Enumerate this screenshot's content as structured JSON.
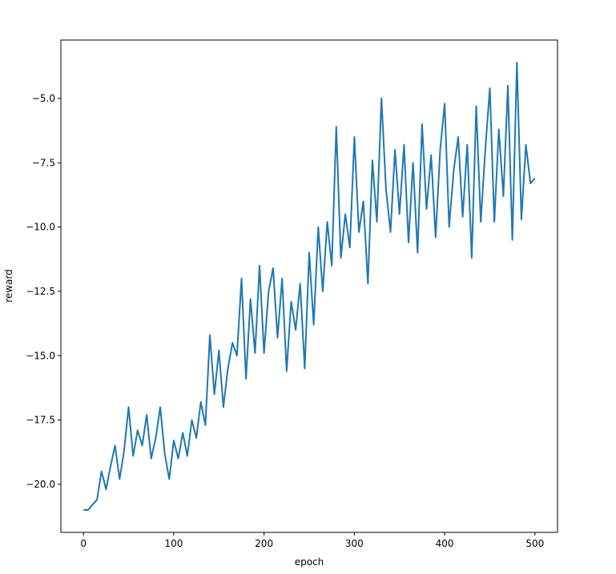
{
  "chart_data": {
    "type": "line",
    "title": "",
    "xlabel": "epoch",
    "ylabel": "reward",
    "xlim": [
      -25,
      525
    ],
    "ylim": [
      -21.87,
      -2.73
    ],
    "xticks": [
      0,
      100,
      200,
      300,
      400,
      500
    ],
    "xtick_labels": [
      "0",
      "100",
      "200",
      "300",
      "400",
      "500"
    ],
    "yticks": [
      -20.0,
      -17.5,
      -15.0,
      -12.5,
      -10.0,
      -7.5,
      -5.0
    ],
    "ytick_labels": [
      "−20.0",
      "−17.5",
      "−15.0",
      "−12.5",
      "−10.0",
      "−7.5",
      "−5.0"
    ],
    "grid": false,
    "color": "#1f77b4",
    "series": [
      {
        "x": [
          0,
          5,
          10,
          15,
          20,
          25,
          30,
          35,
          40,
          45,
          50,
          55,
          60,
          65,
          70,
          75,
          80,
          85,
          90,
          95,
          100,
          105,
          110,
          115,
          120,
          125,
          130,
          135,
          140,
          145,
          150,
          155,
          160,
          165,
          170,
          175,
          180,
          185,
          190,
          195,
          200,
          205,
          210,
          215,
          220,
          225,
          230,
          235,
          240,
          245,
          250,
          255,
          260,
          265,
          270,
          275,
          280,
          285,
          290,
          295,
          300,
          305,
          310,
          315,
          320,
          325,
          330,
          335,
          340,
          345,
          350,
          355,
          360,
          365,
          370,
          375,
          380,
          385,
          390,
          395,
          400,
          405,
          410,
          415,
          420,
          425,
          430,
          435,
          440,
          445,
          450,
          455,
          460,
          465,
          470,
          475,
          480,
          485,
          490,
          495,
          500
        ],
        "y": [
          -21,
          -21,
          -20.8,
          -20.6,
          -19.5,
          -20.2,
          -19.3,
          -18.5,
          -19.8,
          -18.7,
          -17.0,
          -18.9,
          -17.9,
          -18.5,
          -17.3,
          -19.0,
          -18.2,
          -17.0,
          -18.8,
          -19.8,
          -18.3,
          -19.0,
          -18.0,
          -18.9,
          -17.5,
          -18.2,
          -16.8,
          -17.7,
          -14.2,
          -16.5,
          -14.8,
          -17.0,
          -15.5,
          -14.5,
          -15.0,
          -12.0,
          -15.9,
          -12.8,
          -14.9,
          -11.5,
          -14.9,
          -12.5,
          -11.6,
          -14.3,
          -12.0,
          -15.6,
          -12.9,
          -14.0,
          -12.2,
          -15.5,
          -11.0,
          -13.8,
          -10.0,
          -12.5,
          -9.8,
          -11.5,
          -6.1,
          -11.2,
          -9.5,
          -10.8,
          -6.5,
          -10.2,
          -9.0,
          -12.2,
          -7.4,
          -9.8,
          -5.0,
          -8.5,
          -10.2,
          -7.0,
          -9.5,
          -6.8,
          -10.6,
          -7.5,
          -11.0,
          -6.0,
          -9.3,
          -7.2,
          -10.4,
          -7.0,
          -5.2,
          -10.0,
          -7.8,
          -6.5,
          -9.6,
          -6.8,
          -11.2,
          -5.3,
          -9.8,
          -7.0,
          -4.6,
          -9.8,
          -6.2,
          -8.8,
          -4.5,
          -10.5,
          -3.6,
          -9.7,
          -6.8,
          -8.3,
          -8.1
        ]
      }
    ]
  }
}
